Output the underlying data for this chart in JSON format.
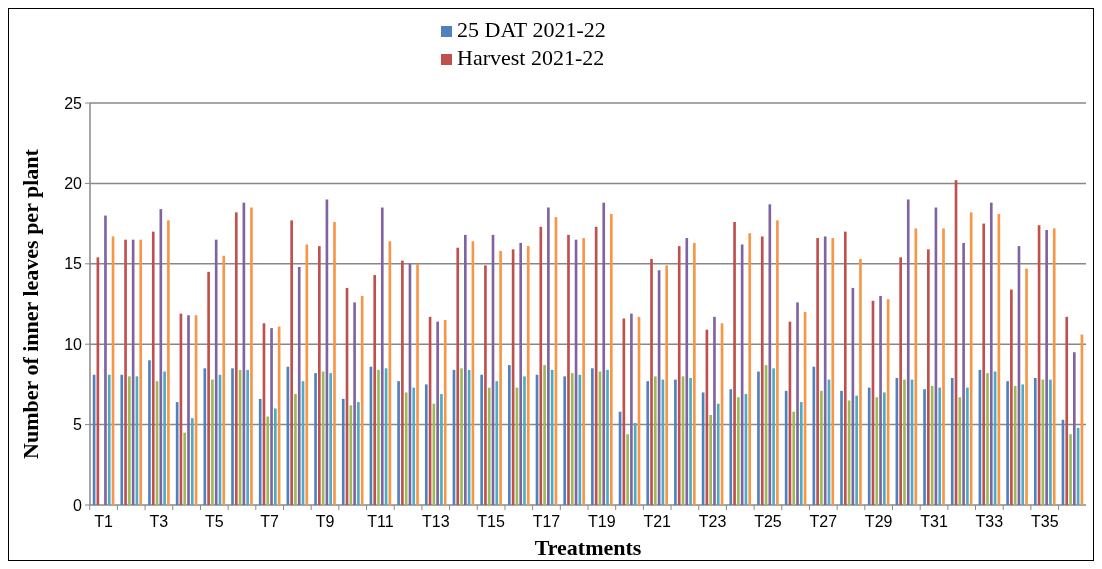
{
  "chart_data": {
    "type": "bar",
    "xlabel": "Treatments",
    "ylabel": "Number of inner leaves per plant",
    "categories": [
      "T1",
      null,
      "T3",
      null,
      "T5",
      null,
      "T7",
      null,
      "T9",
      null,
      "T11",
      null,
      "T13",
      null,
      "T15",
      null,
      "T17",
      null,
      "T19",
      null,
      "T21",
      null,
      "T23",
      null,
      "T25",
      null,
      "T27",
      null,
      "T29",
      null,
      "T31",
      null,
      "T33",
      null,
      "T35",
      null
    ],
    "series": [
      {
        "name": "25 DAT 2021-22",
        "color": "#4f81bd",
        "values": [
          8.1,
          8.1,
          9.0,
          6.4,
          8.5,
          8.5,
          6.6,
          8.6,
          8.2,
          6.6,
          8.6,
          7.7,
          7.5,
          8.4,
          8.1,
          8.7,
          8.1,
          8.0,
          8.5,
          5.8,
          7.7,
          7.8,
          7.0,
          7.2,
          8.3,
          7.1,
          8.6,
          7.1,
          7.3,
          7.9,
          7.2,
          7.9,
          8.4,
          7.7,
          7.9,
          5.3
        ]
      },
      {
        "name": "Harvest 2021-22",
        "color": "#c0504d",
        "values": [
          15.4,
          16.5,
          17.0,
          11.9,
          14.5,
          18.2,
          11.3,
          17.7,
          16.1,
          13.5,
          14.3,
          15.2,
          11.7,
          16.0,
          14.9,
          15.9,
          17.3,
          16.8,
          17.3,
          11.6,
          15.3,
          16.1,
          10.9,
          17.6,
          16.7,
          11.4,
          16.6,
          17.0,
          12.7,
          15.4,
          15.9,
          20.2,
          17.5,
          13.4,
          17.4,
          11.7
        ]
      },
      {
        "color": "#9bbb59",
        "values": [
          null,
          8.0,
          7.7,
          4.5,
          7.8,
          8.4,
          5.5,
          6.9,
          8.3,
          6.2,
          8.4,
          7.0,
          6.3,
          8.5,
          7.3,
          7.3,
          8.7,
          8.2,
          8.3,
          4.4,
          8.0,
          8.0,
          5.6,
          6.7,
          8.7,
          5.8,
          7.1,
          6.5,
          6.7,
          7.8,
          7.4,
          6.7,
          8.2,
          7.4,
          7.8,
          4.4
        ]
      },
      {
        "color": "#8064a2",
        "values": [
          18.0,
          16.5,
          18.4,
          11.8,
          16.5,
          18.8,
          11.0,
          14.8,
          19.0,
          12.6,
          18.5,
          15.0,
          11.4,
          16.8,
          16.8,
          16.3,
          18.5,
          16.5,
          18.8,
          11.9,
          14.6,
          16.6,
          11.7,
          16.2,
          18.7,
          12.6,
          16.7,
          13.5,
          13.0,
          19.0,
          18.5,
          16.3,
          18.8,
          16.1,
          17.1,
          9.5
        ]
      },
      {
        "color": "#4bacc6",
        "values": [
          8.1,
          8.0,
          8.3,
          5.4,
          8.1,
          8.4,
          6.0,
          7.7,
          8.2,
          6.4,
          8.5,
          7.3,
          6.9,
          8.4,
          7.7,
          8.0,
          8.4,
          8.1,
          8.4,
          5.1,
          7.8,
          7.9,
          6.3,
          6.9,
          8.5,
          6.4,
          7.8,
          6.8,
          7.0,
          7.8,
          7.3,
          7.3,
          8.3,
          7.5,
          7.8,
          4.8
        ]
      },
      {
        "color": "#f79646",
        "values": [
          16.7,
          16.5,
          17.7,
          11.8,
          15.5,
          18.5,
          11.1,
          16.2,
          17.6,
          13.0,
          16.4,
          15.0,
          11.5,
          16.4,
          15.8,
          16.1,
          17.9,
          16.6,
          18.1,
          11.7,
          14.9,
          16.3,
          11.3,
          16.9,
          17.7,
          12.0,
          16.6,
          15.3,
          12.8,
          17.2,
          17.2,
          18.2,
          18.1,
          14.7,
          17.2,
          10.6
        ]
      }
    ],
    "ylim": [
      0,
      25
    ],
    "yticks": [
      0,
      5,
      10,
      15,
      20,
      25
    ],
    "grid": "y",
    "legend": "top"
  }
}
